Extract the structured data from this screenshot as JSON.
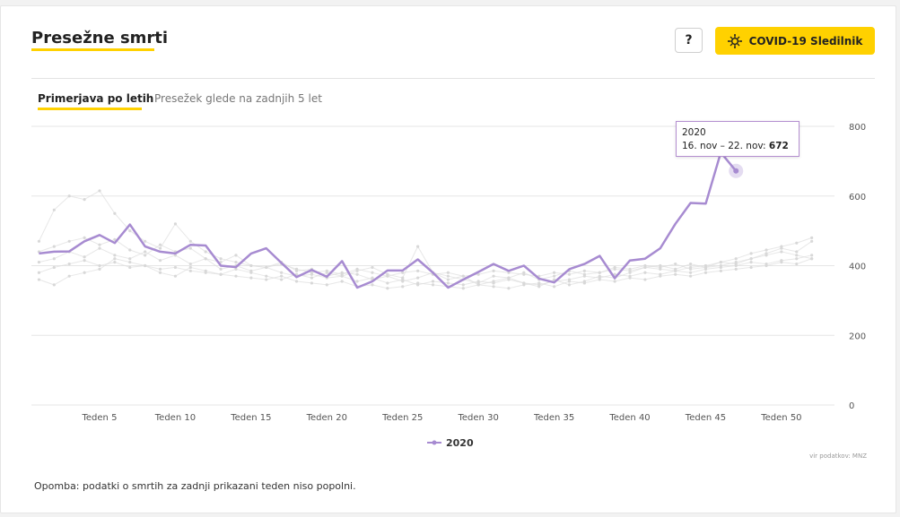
{
  "header": {
    "title": "Presežne smrti",
    "help_label": "?",
    "covid_label": "COVID-19 Sledilnik",
    "covid_icon": "virus-icon",
    "accent_color": "#ffd100"
  },
  "tabs": [
    {
      "label": "Primerjava po letih",
      "active": true
    },
    {
      "label": "Presežek glede na zadnjih 5 let",
      "active": false
    }
  ],
  "tooltip": {
    "year": "2020",
    "range": "16. nov – 22. nov: ",
    "value": "672"
  },
  "source": "vir podatkov: MNZ",
  "note": "Opomba: podatki o smrtih za zadnji prikazani teden niso popolni.",
  "chart_data": {
    "type": "line",
    "x_tick_labels": [
      "Teden 5",
      "Teden 10",
      "Teden 15",
      "Teden 20",
      "Teden 25",
      "Teden 30",
      "Teden 35",
      "Teden 40",
      "Teden 45",
      "Teden 50"
    ],
    "x_tick_values": [
      5,
      10,
      15,
      20,
      25,
      30,
      35,
      40,
      45,
      50
    ],
    "xlim": [
      0.5,
      53.5
    ],
    "ylim": [
      0,
      800
    ],
    "y_ticks": [
      0,
      200,
      400,
      600,
      800
    ],
    "grid": true,
    "legend_position": "bottom",
    "series": [
      {
        "name": "2020",
        "color": "#a78bd1",
        "x": [
          1,
          2,
          3,
          4,
          5,
          6,
          7,
          8,
          9,
          10,
          11,
          12,
          13,
          14,
          15,
          16,
          17,
          18,
          19,
          20,
          21,
          22,
          23,
          24,
          25,
          26,
          27,
          28,
          29,
          30,
          31,
          32,
          33,
          34,
          35,
          36,
          37,
          38,
          39,
          40,
          41,
          42,
          43,
          44,
          45,
          46,
          47
        ],
        "values": [
          435,
          440,
          441,
          470,
          488,
          465,
          518,
          455,
          440,
          435,
          460,
          458,
          400,
          396,
          435,
          450,
          408,
          367,
          388,
          368,
          413,
          337,
          355,
          386,
          386,
          418,
          380,
          337,
          360,
          382,
          405,
          385,
          400,
          363,
          352,
          390,
          405,
          428,
          364,
          415,
          420,
          450,
          520,
          580,
          578,
          725,
          672
        ]
      },
      {
        "name": "",
        "color": "#dddddd",
        "x": [
          1,
          2,
          3,
          4,
          5,
          6,
          7,
          8,
          9,
          10,
          11,
          12,
          13,
          14,
          15,
          16,
          17,
          18,
          19,
          20,
          21,
          22,
          23,
          24,
          25,
          26,
          27,
          28,
          29,
          30,
          31,
          32,
          33,
          34,
          35,
          36,
          37,
          38,
          39,
          40,
          41,
          42,
          43,
          44,
          45,
          46,
          47,
          48,
          49,
          50,
          51,
          52
        ],
        "values": [
          470,
          560,
          600,
          590,
          615,
          550,
          500,
          470,
          450,
          520,
          470,
          440,
          420,
          410,
          400,
          395,
          405,
          390,
          380,
          385,
          375,
          390,
          380,
          370,
          380,
          385,
          375,
          380,
          370,
          375,
          385,
          380,
          375,
          370,
          380,
          375,
          385,
          380,
          390,
          385,
          395,
          390,
          385,
          395,
          400,
          410,
          405,
          420,
          430,
          440,
          430,
          420
        ]
      },
      {
        "name": "",
        "color": "#dddddd",
        "x": [
          1,
          2,
          3,
          4,
          5,
          6,
          7,
          8,
          9,
          10,
          11,
          12,
          13,
          14,
          15,
          16,
          17,
          18,
          19,
          20,
          21,
          22,
          23,
          24,
          25,
          26,
          27,
          28,
          29,
          30,
          31,
          32,
          33,
          34,
          35,
          36,
          37,
          38,
          39,
          40,
          41,
          42,
          43,
          44,
          45,
          46,
          47,
          48,
          49,
          50,
          51,
          52
        ],
        "values": [
          440,
          455,
          470,
          480,
          460,
          475,
          445,
          430,
          460,
          440,
          450,
          420,
          410,
          430,
          400,
          395,
          410,
          385,
          390,
          370,
          380,
          375,
          360,
          370,
          355,
          365,
          380,
          370,
          360,
          350,
          370,
          365,
          380,
          360,
          370,
          385,
          375,
          380,
          395,
          390,
          400,
          395,
          405,
          390,
          395,
          400,
          410,
          420,
          435,
          450,
          440,
          470
        ]
      },
      {
        "name": "",
        "color": "#dddddd",
        "x": [
          1,
          2,
          3,
          4,
          5,
          6,
          7,
          8,
          9,
          10,
          11,
          12,
          13,
          14,
          15,
          16,
          17,
          18,
          19,
          20,
          21,
          22,
          23,
          24,
          25,
          26,
          27,
          28,
          29,
          30,
          31,
          32,
          33,
          34,
          35,
          36,
          37,
          38,
          39,
          40,
          41,
          42,
          43,
          44,
          45,
          46,
          47,
          48,
          49,
          50,
          51,
          52
        ],
        "values": [
          410,
          420,
          440,
          425,
          450,
          430,
          420,
          440,
          415,
          430,
          405,
          420,
          390,
          400,
          385,
          395,
          380,
          370,
          375,
          365,
          370,
          355,
          365,
          350,
          360,
          345,
          355,
          350,
          345,
          355,
          350,
          360,
          350,
          345,
          355,
          360,
          370,
          365,
          375,
          370,
          380,
          375,
          385,
          380,
          390,
          395,
          400,
          410,
          405,
          415,
          420,
          430
        ]
      },
      {
        "name": "",
        "color": "#dddddd",
        "x": [
          1,
          2,
          3,
          4,
          5,
          6,
          7,
          8,
          9,
          10,
          11,
          12,
          13,
          14,
          15,
          16,
          17,
          18,
          19,
          20,
          21,
          22,
          23,
          24,
          25,
          26,
          27,
          28,
          29,
          30,
          31,
          32,
          33,
          34,
          35,
          36,
          37,
          38,
          39,
          40,
          41,
          42,
          43,
          44,
          45,
          46,
          47,
          48,
          49,
          50,
          51,
          52
        ],
        "values": [
          380,
          395,
          405,
          415,
          400,
          410,
          395,
          400,
          390,
          395,
          385,
          380,
          375,
          370,
          365,
          360,
          370,
          355,
          350,
          345,
          355,
          340,
          345,
          335,
          340,
          350,
          345,
          340,
          335,
          345,
          340,
          335,
          345,
          350,
          340,
          355,
          350,
          360,
          355,
          365,
          360,
          370,
          375,
          370,
          380,
          385,
          390,
          395,
          400,
          410,
          405,
          420
        ]
      },
      {
        "name": "",
        "color": "#dddddd",
        "x": [
          1,
          2,
          3,
          4,
          5,
          6,
          7,
          8,
          9,
          10,
          11,
          12,
          13,
          14,
          15,
          16,
          17,
          18,
          19,
          20,
          21,
          22,
          23,
          24,
          25,
          26,
          27,
          28,
          29,
          30,
          31,
          32,
          33,
          34,
          35,
          36,
          37,
          38,
          39,
          40,
          41,
          42,
          43,
          44,
          45,
          46,
          47,
          48,
          49,
          50,
          51,
          52
        ],
        "values": [
          360,
          345,
          370,
          380,
          390,
          420,
          410,
          400,
          380,
          370,
          395,
          385,
          375,
          390,
          380,
          370,
          360,
          375,
          365,
          380,
          370,
          385,
          395,
          375,
          365,
          455,
          380,
          360,
          370,
          345,
          355,
          365,
          350,
          340,
          360,
          345,
          355,
          370,
          365,
          380,
          395,
          400,
          390,
          405,
          395,
          410,
          420,
          435,
          445,
          455,
          465,
          480
        ]
      }
    ]
  }
}
